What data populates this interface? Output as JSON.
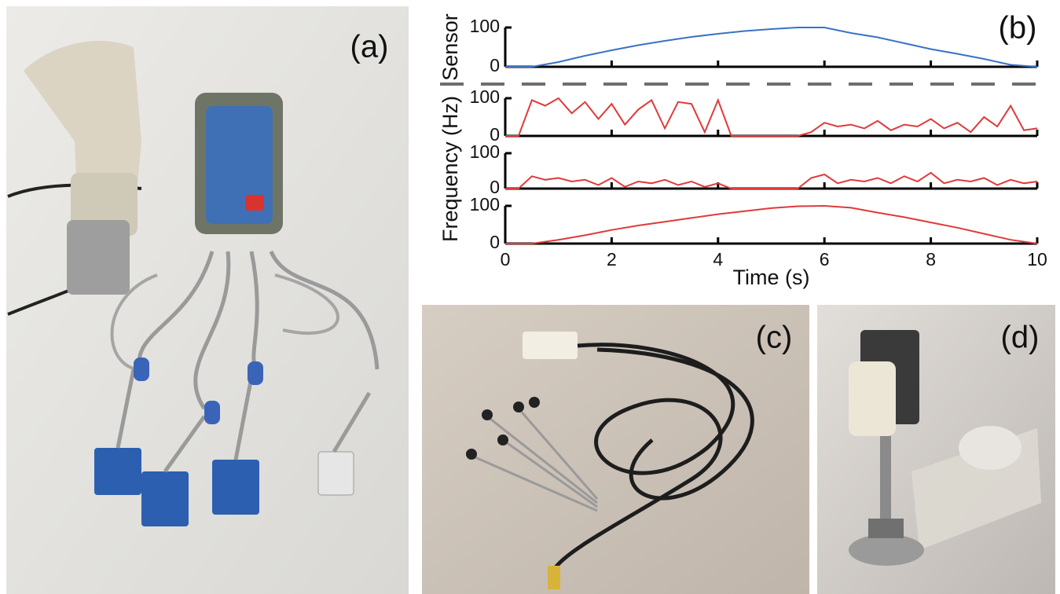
{
  "panels": [
    "(a)",
    "(b)",
    "(c)",
    "(d)"
  ],
  "chart_data": [
    {
      "type": "line",
      "ylabel": "Sensor",
      "x": [
        0,
        0.5,
        1,
        1.5,
        2,
        2.5,
        3,
        3.5,
        4,
        4.5,
        5,
        5.5,
        6,
        6.5,
        7,
        7.5,
        8,
        8.5,
        9,
        9.5,
        10
      ],
      "series": [
        {
          "color": "#3a72c4",
          "values": [
            0,
            0,
            12,
            28,
            42,
            55,
            66,
            76,
            84,
            91,
            96,
            100,
            100,
            86,
            75,
            60,
            45,
            33,
            20,
            5,
            0
          ]
        }
      ],
      "xlim": [
        0,
        10
      ],
      "xticks": [
        0,
        2,
        4,
        6,
        8,
        10
      ],
      "xtick_labels": false,
      "ylim": [
        0,
        100
      ],
      "yticks": [
        0,
        100
      ]
    },
    {
      "type": "line",
      "x": [
        0,
        0.25,
        0.5,
        0.75,
        1,
        1.25,
        1.5,
        1.75,
        2,
        2.25,
        2.5,
        2.75,
        3,
        3.25,
        3.5,
        3.75,
        4,
        4.25,
        4.5,
        4.75,
        5,
        5.25,
        5.5,
        5.75,
        6,
        6.25,
        6.5,
        6.75,
        7,
        7.25,
        7.5,
        7.75,
        8,
        8.25,
        8.5,
        8.75,
        9,
        9.25,
        9.5,
        9.75,
        10
      ],
      "series": [
        {
          "color": "#e03a3a",
          "values": [
            0,
            0,
            95,
            80,
            100,
            60,
            90,
            45,
            85,
            30,
            70,
            95,
            20,
            90,
            85,
            10,
            95,
            0,
            0,
            0,
            0,
            0,
            0,
            10,
            35,
            25,
            30,
            20,
            40,
            15,
            30,
            25,
            45,
            20,
            35,
            10,
            50,
            25,
            80,
            15,
            20
          ]
        }
      ],
      "xlim": [
        0,
        10
      ],
      "xticks": [
        0,
        2,
        4,
        6,
        8,
        10
      ],
      "xtick_labels": false,
      "ylim": [
        0,
        100
      ],
      "yticks": [
        0,
        100
      ]
    },
    {
      "type": "line",
      "ylabel": "Frequency (Hz)",
      "x": [
        0,
        0.25,
        0.5,
        0.75,
        1,
        1.25,
        1.5,
        1.75,
        2,
        2.25,
        2.5,
        2.75,
        3,
        3.25,
        3.5,
        3.75,
        4,
        4.25,
        4.5,
        4.75,
        5,
        5.25,
        5.5,
        5.75,
        6,
        6.25,
        6.5,
        6.75,
        7,
        7.25,
        7.5,
        7.75,
        8,
        8.25,
        8.5,
        8.75,
        9,
        9.25,
        9.5,
        9.75,
        10
      ],
      "series": [
        {
          "color": "#e03a3a",
          "values": [
            0,
            0,
            35,
            25,
            30,
            20,
            25,
            10,
            30,
            5,
            20,
            15,
            25,
            10,
            20,
            5,
            15,
            0,
            0,
            0,
            0,
            0,
            0,
            30,
            40,
            15,
            25,
            20,
            30,
            15,
            35,
            20,
            45,
            15,
            25,
            20,
            30,
            10,
            25,
            15,
            20
          ]
        }
      ],
      "xlim": [
        0,
        10
      ],
      "xticks": [
        0,
        2,
        4,
        6,
        8,
        10
      ],
      "xtick_labels": false,
      "ylim": [
        0,
        100
      ],
      "yticks": [
        0,
        100
      ]
    },
    {
      "type": "line",
      "xlabel": "Time (s)",
      "x": [
        0,
        0.5,
        1,
        1.5,
        2,
        2.5,
        3,
        3.5,
        4,
        4.5,
        5,
        5.5,
        6,
        6.5,
        7,
        7.5,
        8,
        8.5,
        9,
        9.5,
        10
      ],
      "series": [
        {
          "color": "#e03a3a",
          "values": [
            0,
            0,
            10,
            22,
            36,
            48,
            58,
            68,
            78,
            86,
            94,
            99,
            100,
            95,
            82,
            70,
            56,
            42,
            26,
            10,
            0
          ]
        }
      ],
      "xlim": [
        0,
        10
      ],
      "xticks": [
        0,
        2,
        4,
        6,
        8,
        10
      ],
      "xtick_labels": true,
      "ylim": [
        0,
        100
      ],
      "yticks": [
        0,
        100
      ]
    }
  ]
}
